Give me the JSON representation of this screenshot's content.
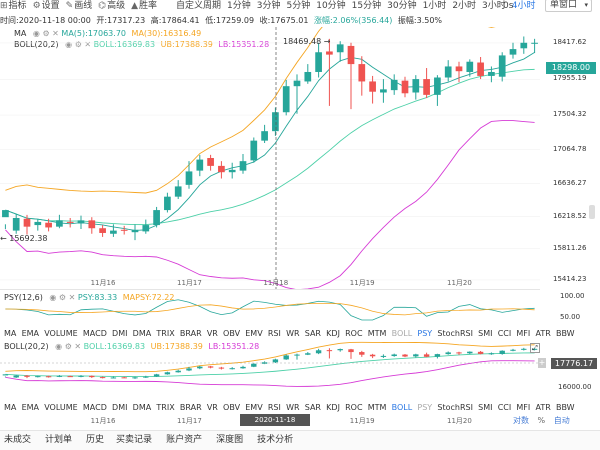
{
  "toolbar": {
    "tools": [
      {
        "icon": "indicator-icon",
        "label": "指标"
      },
      {
        "icon": "settings-icon",
        "label": "设置"
      },
      {
        "icon": "draw-line-icon",
        "label": "画线"
      },
      {
        "icon": "hi-res-icon",
        "label": "高级"
      },
      {
        "icon": "rise-icon",
        "label": "胜率"
      }
    ],
    "periods": [
      "自定义周期",
      "1分钟",
      "3分钟",
      "5分钟",
      "10分钟",
      "15分钟",
      "30分钟",
      "1小时",
      "2小时",
      "3小时",
      "4小时"
    ],
    "active_period": "4小时",
    "zero_s": "0s",
    "chart_mode": "单窗口"
  },
  "info": {
    "time": "时间:2020-11-18 00:00",
    "open": "开:17317.23",
    "high": "高:17864.41",
    "low": "低:17259.09",
    "close": "收:17675.01",
    "change": "涨幅:2.06%(356.44)",
    "amplitude": "振幅:3.50%"
  },
  "legend": {
    "ma_name": "MA",
    "ma5": "MA(5):17063.70",
    "ma30": "MA(30):16316.49",
    "boll_name": "BOLL(20,2)",
    "boll": "BOLL:16369.83",
    "ub": "UB:17388.39",
    "lb": "LB:15351.28"
  },
  "annotations": {
    "high": "18469.48",
    "low": "15692.38",
    "current": "18298.00",
    "crosshair_time": "2020-11-18 00:00:00"
  },
  "y_axis": [
    "18417.62",
    "17955.19",
    "17504.32",
    "17064.78",
    "16636.27",
    "16218.52",
    "15811.26",
    "15414.23"
  ],
  "x_axis": [
    "11月16",
    "11月17",
    "11月18",
    "11月19",
    "11月20"
  ],
  "psy": {
    "name": "PSY(12,6)",
    "psy": "PSY:83.33",
    "mapsy": "MAPSY:72.22",
    "ticks": [
      "100.00",
      "50.00"
    ]
  },
  "sub2": {
    "name": "BOLL(20,2)",
    "boll": "BOLL:16369.83",
    "ub": "UB:17388.39",
    "lb": "LB:15351.28",
    "ticks": [
      "16000.00"
    ],
    "current": "17776.17"
  },
  "indicator_tabs": [
    "MA",
    "EMA",
    "VOLUME",
    "MACD",
    "DMI",
    "DMA",
    "TRIX",
    "BRAR",
    "VR",
    "OBV",
    "EMV",
    "RSI",
    "WR",
    "SAR",
    "KDJ",
    "ROC",
    "MTM",
    "BOLL",
    "PSY",
    "StochRSI",
    "SMI",
    "CCI",
    "MFI",
    "ATR",
    "BBW"
  ],
  "indicator_tabs_row1_active": "PSY",
  "indicator_tabs_row1_muted": "BOLL",
  "indicator_tabs_row2_active": "BOLL",
  "indicator_tabs_row2_muted": "PSY",
  "right_controls": {
    "log": "对数",
    "percent": "%",
    "auto": "自动"
  },
  "bottom_tabs": [
    "未成交",
    "计划单",
    "历史",
    "买卖记录",
    "账户资产",
    "深度图",
    "技术分析"
  ],
  "colors": {
    "up": "#26a69a",
    "down": "#ef5350",
    "ma5": "#26a69a",
    "ma30": "#f5a623",
    "boll": "#4dd0a8",
    "ub": "#f5a623",
    "lb": "#d63bd6"
  },
  "chart_data": {
    "type": "candlestick",
    "interval": "4h",
    "candles": [
      [
        16210,
        16300,
        16120,
        16060
      ],
      [
        16040,
        16200,
        16250,
        16000
      ],
      [
        16190,
        16090,
        16240,
        15990
      ],
      [
        16110,
        16150,
        16180,
        16040
      ],
      [
        16140,
        16080,
        16190,
        16030
      ],
      [
        16090,
        16170,
        16240,
        16070
      ],
      [
        16150,
        16140,
        16200,
        16080
      ],
      [
        16130,
        16170,
        16230,
        16060
      ],
      [
        16170,
        16070,
        16210,
        16000
      ],
      [
        16070,
        16010,
        16110,
        15960
      ],
      [
        16000,
        16040,
        16120,
        15960
      ],
      [
        16050,
        16040,
        16100,
        15990
      ],
      [
        16020,
        16050,
        16120,
        15920
      ],
      [
        16030,
        16110,
        16180,
        16000
      ],
      [
        16110,
        16300,
        16340,
        16080
      ],
      [
        16300,
        16470,
        16520,
        16270
      ],
      [
        16470,
        16600,
        16680,
        16440
      ],
      [
        16620,
        16790,
        16920,
        16570
      ],
      [
        16800,
        16940,
        17000,
        16730
      ],
      [
        16960,
        16860,
        17000,
        16800
      ],
      [
        16860,
        16780,
        16920,
        16700
      ],
      [
        16780,
        16810,
        16900,
        16700
      ],
      [
        16800,
        16920,
        17010,
        16760
      ],
      [
        16930,
        17180,
        17220,
        16900
      ],
      [
        17180,
        17300,
        17380,
        17150
      ],
      [
        17300,
        17540,
        17600,
        17240
      ],
      [
        17540,
        17870,
        17950,
        17500
      ],
      [
        17870,
        17940,
        18020,
        17520
      ],
      [
        17930,
        18050,
        18150,
        17900
      ],
      [
        18050,
        18300,
        18420,
        17980
      ],
      [
        18310,
        18270,
        18470,
        17620
      ],
      [
        18300,
        18400,
        18440,
        18180
      ],
      [
        18380,
        18150,
        18420,
        17580
      ],
      [
        18150,
        17930,
        18250,
        17750
      ],
      [
        17930,
        17800,
        18000,
        17650
      ],
      [
        17790,
        17830,
        17960,
        17660
      ],
      [
        17820,
        17950,
        18020,
        17760
      ],
      [
        17940,
        17780,
        17990,
        17730
      ],
      [
        17790,
        17960,
        18010,
        17700
      ],
      [
        17960,
        17760,
        18100,
        17720
      ],
      [
        17760,
        17980,
        18010,
        17620
      ],
      [
        17980,
        18120,
        18200,
        17930
      ],
      [
        18120,
        18060,
        18180,
        17920
      ],
      [
        18050,
        18180,
        18210,
        17990
      ],
      [
        18170,
        18000,
        18240,
        17960
      ],
      [
        18000,
        18050,
        18120,
        17920
      ],
      [
        17990,
        18260,
        18300,
        17930
      ],
      [
        18270,
        18340,
        18420,
        18220
      ],
      [
        18350,
        18420,
        18500,
        18280
      ],
      [
        18410,
        18420,
        18470,
        18290
      ]
    ],
    "ylim": [
      15300,
      18620
    ]
  }
}
